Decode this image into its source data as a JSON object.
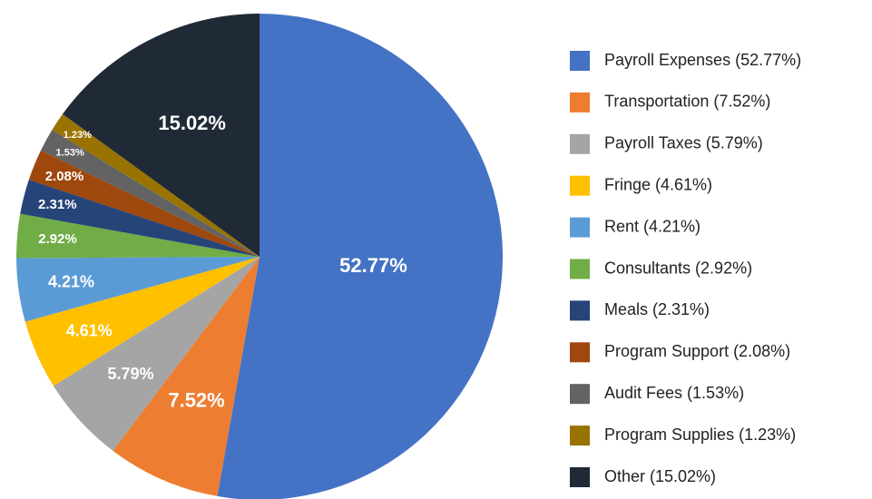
{
  "chart_data": {
    "type": "pie",
    "categories": [
      "Payroll Expenses (52.77%)",
      "Transportation (7.52%)",
      "Payroll Taxes (5.79%)",
      "Fringe (4.61%)",
      "Rent (4.21%)",
      "Consultants (2.92%)",
      "Meals (2.31%)",
      "Program Support (2.08%)",
      "Audit Fees (1.53%)",
      "Program Supplies (1.23%)",
      "Other (15.02%)"
    ],
    "values": [
      52.77,
      7.52,
      5.79,
      4.61,
      4.21,
      2.92,
      2.31,
      2.08,
      1.53,
      1.23,
      15.02
    ],
    "value_labels": [
      "52.77%",
      "7.52%",
      "5.79%",
      "4.61%",
      "4.21%",
      "2.92%",
      "2.31%",
      "2.08%",
      "1.53%",
      "1.23%",
      "15.02%"
    ],
    "colors": [
      "#4472c4",
      "#ed7d31",
      "#a5a5a5",
      "#ffc000",
      "#5b9bd5",
      "#70ad47",
      "#264478",
      "#9e480e",
      "#636363",
      "#997300",
      "#1f2a36"
    ],
    "legend": "right"
  }
}
